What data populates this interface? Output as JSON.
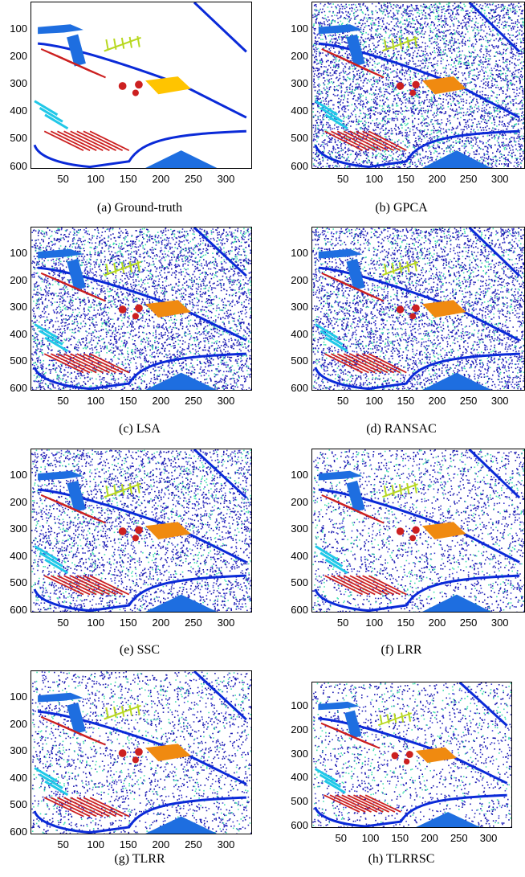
{
  "figure": {
    "y_ticks": [
      "100",
      "200",
      "300",
      "400",
      "500",
      "600"
    ],
    "x_ticks": [
      "50",
      "100",
      "150",
      "200",
      "250",
      "300"
    ],
    "colors": {
      "background_clean": "#ffffff",
      "noise_dark": "#1a1ab0",
      "class_red": "#cc2020",
      "class_orange": "#f08a10",
      "class_yellow": "#ffc400",
      "class_lime": "#b8d820",
      "class_cyan": "#20c8e8",
      "class_blue": "#1e6ee0",
      "class_navy": "#0a2ad8",
      "class_aqua": "#40e0b0"
    },
    "panels": [
      {
        "id": "a",
        "caption": "(a)  Ground-truth",
        "noise": 0.0
      },
      {
        "id": "b",
        "caption": "(b)  GPCA",
        "noise": 0.62
      },
      {
        "id": "c",
        "caption": "(c)  LSA",
        "noise": 0.55
      },
      {
        "id": "d",
        "caption": "(d)  RANSAC",
        "noise": 0.55
      },
      {
        "id": "e",
        "caption": "(e)  SSC",
        "noise": 0.45
      },
      {
        "id": "f",
        "caption": "(f)  LRR",
        "noise": 0.3
      },
      {
        "id": "g",
        "caption": "(g)  TLRR",
        "noise": 0.3
      },
      {
        "id": "h",
        "caption": "(h)  TLRRSC",
        "noise": 0.25
      }
    ]
  }
}
